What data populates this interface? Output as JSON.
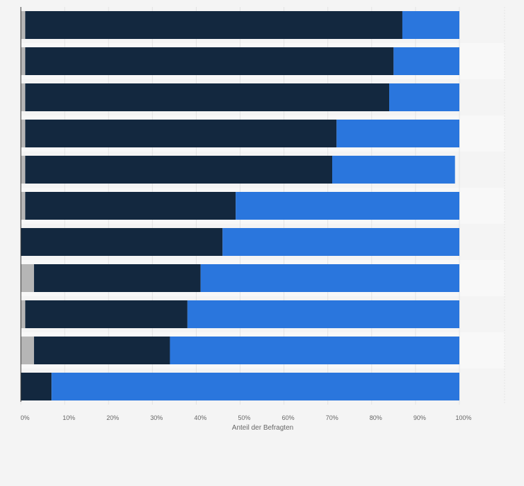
{
  "chart_data": {
    "type": "bar",
    "orientation": "horizontal",
    "stacked": true,
    "categories": [
      "",
      "",
      "",
      "",
      "",
      "",
      "",
      "",
      "",
      "",
      ""
    ],
    "series": [
      {
        "values": [
          1,
          1,
          1,
          1,
          1,
          1,
          0,
          3,
          1,
          3,
          0
        ],
        "color": "#b6b6b6"
      },
      {
        "values": [
          86,
          84,
          83,
          71,
          70,
          48,
          46,
          38,
          37,
          31,
          7
        ],
        "color": "#13283f"
      },
      {
        "values": [
          13,
          15,
          16,
          28,
          28,
          51,
          54,
          59,
          62,
          66,
          93
        ],
        "color": "#2a76dd"
      }
    ],
    "xlabel": "Anteil der Befragten",
    "ylabel": "",
    "xlim": [
      0,
      100
    ],
    "x_ticks": [
      "0%",
      "10%",
      "20%",
      "30%",
      "40%",
      "50%",
      "60%",
      "70%",
      "80%",
      "90%",
      "100%"
    ],
    "grid": true,
    "legend": "none"
  }
}
